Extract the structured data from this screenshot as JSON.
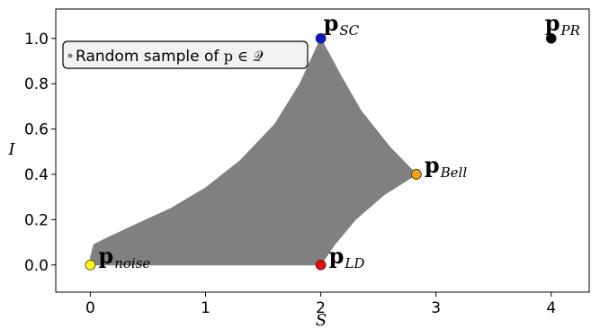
{
  "chart_data": {
    "type": "scatter",
    "xlabel": "S",
    "ylabel": "I",
    "xlim": [
      -0.3,
      4.33
    ],
    "ylim": [
      -0.12,
      1.13
    ],
    "x_ticks": [
      0,
      1,
      2,
      3,
      4
    ],
    "y_ticks": [
      0.0,
      0.2,
      0.4,
      0.6,
      0.8,
      1.0
    ],
    "x_tick_labels": [
      "0",
      "1",
      "2",
      "3",
      "4"
    ],
    "y_tick_labels": [
      "0.0",
      "0.2",
      "0.4",
      "0.6",
      "0.8",
      "1.0"
    ],
    "grid": false,
    "legend": {
      "position": "top-left",
      "text_prefix": "Random sample of ",
      "text_math": "p ∈ 𝒬",
      "marker_color": "#808080"
    },
    "region": {
      "name": "Random sample of p ∈ 𝒬",
      "color": "#808080",
      "boundary_points": [
        [
          0.03,
          0.0
        ],
        [
          2.0,
          0.0
        ],
        [
          2.12,
          0.09
        ],
        [
          2.3,
          0.2
        ],
        [
          2.55,
          0.31
        ],
        [
          2.83,
          0.4
        ],
        [
          2.6,
          0.52
        ],
        [
          2.35,
          0.68
        ],
        [
          2.18,
          0.83
        ],
        [
          2.0,
          1.0
        ],
        [
          1.82,
          0.8
        ],
        [
          1.6,
          0.62
        ],
        [
          1.3,
          0.46
        ],
        [
          1.0,
          0.34
        ],
        [
          0.7,
          0.25
        ],
        [
          0.4,
          0.18
        ],
        [
          0.15,
          0.12
        ],
        [
          0.03,
          0.09
        ],
        [
          0.0,
          0.03
        ]
      ]
    },
    "points": [
      {
        "label_main": "p",
        "label_sub": "SC",
        "x": 2.0,
        "y": 1.0,
        "color": "#0a14d8",
        "label_pos": "above-right"
      },
      {
        "label_main": "p",
        "label_sub": "PR",
        "x": 4.0,
        "y": 1.0,
        "color": "#000000",
        "label_pos": "above"
      },
      {
        "label_main": "p",
        "label_sub": "Bell",
        "x": 2.83,
        "y": 0.4,
        "color": "#f5a000",
        "label_pos": "right"
      },
      {
        "label_main": "p",
        "label_sub": "LD",
        "x": 2.0,
        "y": 0.0,
        "color": "#ff0000",
        "label_pos": "right"
      },
      {
        "label_main": "p",
        "label_sub": "noise",
        "x": 0.0,
        "y": 0.0,
        "color": "#ffff00",
        "label_pos": "right"
      }
    ]
  }
}
